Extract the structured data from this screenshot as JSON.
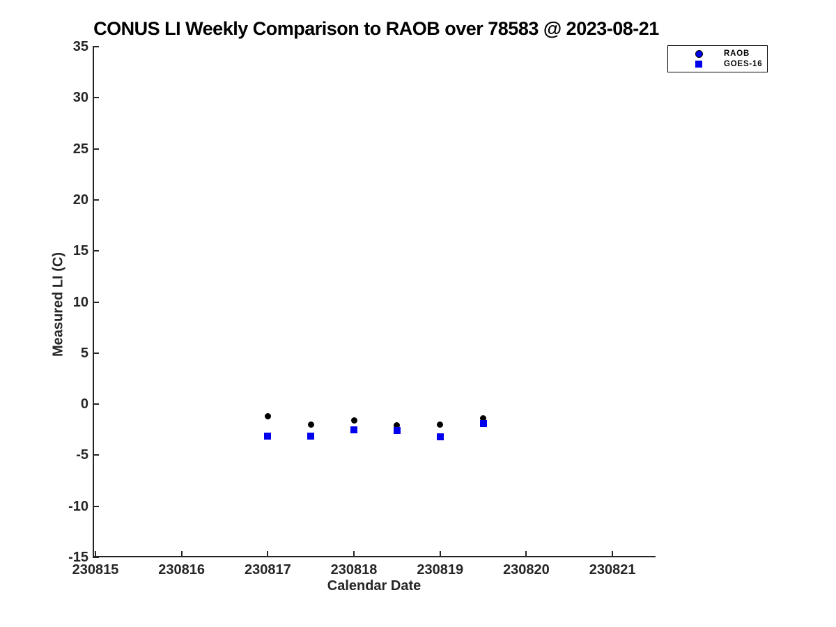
{
  "chart_data": {
    "type": "scatter",
    "title": "CONUS LI Weekly Comparison to RAOB over 78583 @ 2023-08-21",
    "xlabel": "Calendar Date",
    "ylabel": "Measured LI (C)",
    "xlim": [
      230814.968,
      230821.5
    ],
    "ylim": [
      -15,
      35
    ],
    "xticks": [
      230815,
      230816,
      230817,
      230818,
      230819,
      230820,
      230821
    ],
    "xticklabels": [
      "230815",
      "230816",
      "230817",
      "230818",
      "230819",
      "230820",
      "230821"
    ],
    "yticks": [
      35,
      30,
      25,
      20,
      15,
      10,
      5,
      0,
      -5,
      -10,
      -15
    ],
    "yticklabels": [
      "35",
      "30",
      "25",
      "20",
      "15",
      "10",
      "5",
      "0",
      "-5",
      "-10",
      "-15"
    ],
    "x": [
      230817.0,
      230817.5,
      230818.0,
      230818.5,
      230819.0,
      230819.5
    ],
    "series": [
      {
        "name": "RAOB",
        "marker": "circle",
        "color": "#000000",
        "values": [
          -1.2,
          -2.0,
          -1.6,
          -2.1,
          -2.0,
          -1.4
        ]
      },
      {
        "name": "GOES-16",
        "marker": "square",
        "color": "#0000ee",
        "values": [
          -3.1,
          -3.1,
          -2.5,
          -2.6,
          -3.2,
          -1.9
        ]
      }
    ],
    "legend": {
      "position": "top-right",
      "entries": [
        {
          "label": "RAOB",
          "marker": "circle",
          "fill": "#0000ee",
          "edge": "#000000"
        },
        {
          "label": "GOES-16",
          "marker": "square",
          "fill": "#0000ee",
          "edge": "#0000ee"
        }
      ]
    },
    "grid": false,
    "background": "#ffffff",
    "axis_color": "#262626"
  }
}
